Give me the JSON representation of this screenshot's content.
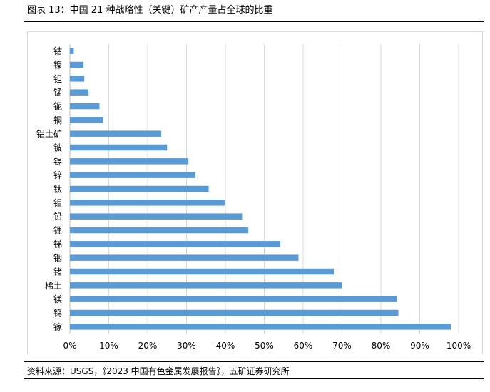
{
  "header": {
    "title": "图表 13：中国 21 种战略性（关键）矿产产量占全球的比重"
  },
  "footer": {
    "source": "资料来源：USGS，《2023 中国有色金属发展报告》，五矿证券研究所"
  },
  "chart_data": {
    "type": "bar",
    "orientation": "horizontal",
    "categories": [
      "钴",
      "镍",
      "钽",
      "锰",
      "铌",
      "铜",
      "铝土矿",
      "铍",
      "锡",
      "锌",
      "钛",
      "钼",
      "铅",
      "锂",
      "锑",
      "铟",
      "锗",
      "稀土",
      "镁",
      "钨",
      "镓"
    ],
    "values": [
      1,
      3.5,
      3.7,
      4.8,
      7.6,
      8.5,
      23.5,
      25,
      30.5,
      32.3,
      35.7,
      39.8,
      44.3,
      45.9,
      54.1,
      58.8,
      67.9,
      70,
      84.1,
      84.5,
      98
    ],
    "xlim": [
      0,
      100
    ],
    "x_ticks": [
      "0%",
      "10%",
      "20%",
      "30%",
      "40%",
      "50%",
      "60%",
      "70%",
      "80%",
      "90%",
      "100%"
    ],
    "grid": "vertical",
    "bar_color": "#5b9bd5"
  }
}
